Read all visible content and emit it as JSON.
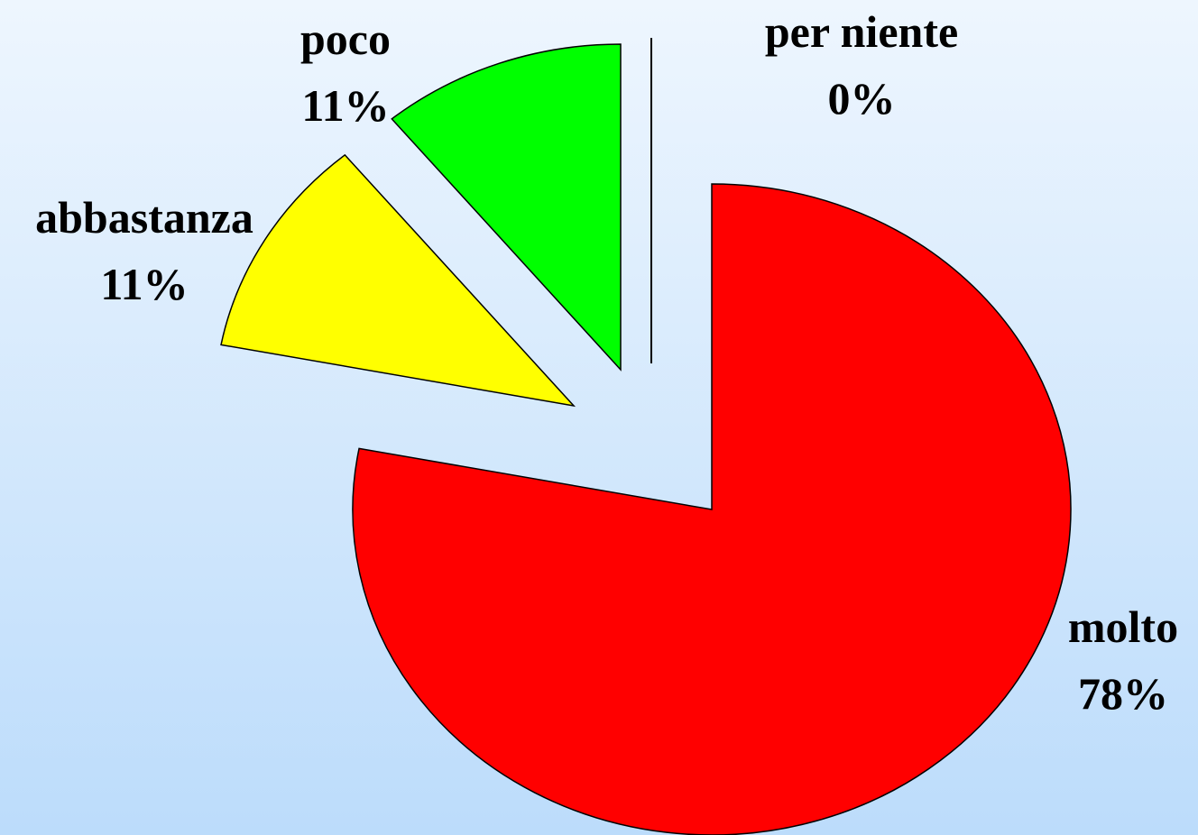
{
  "chart_data": {
    "type": "pie",
    "categories": [
      "molto",
      "abbastanza",
      "poco",
      "per niente"
    ],
    "values": [
      78,
      11,
      11,
      0
    ],
    "value_labels": [
      "78%",
      "11%",
      "11%",
      "0%"
    ],
    "colors": [
      "#ff0000",
      "#ffff00",
      "#00ff00",
      "#0000ff"
    ]
  }
}
